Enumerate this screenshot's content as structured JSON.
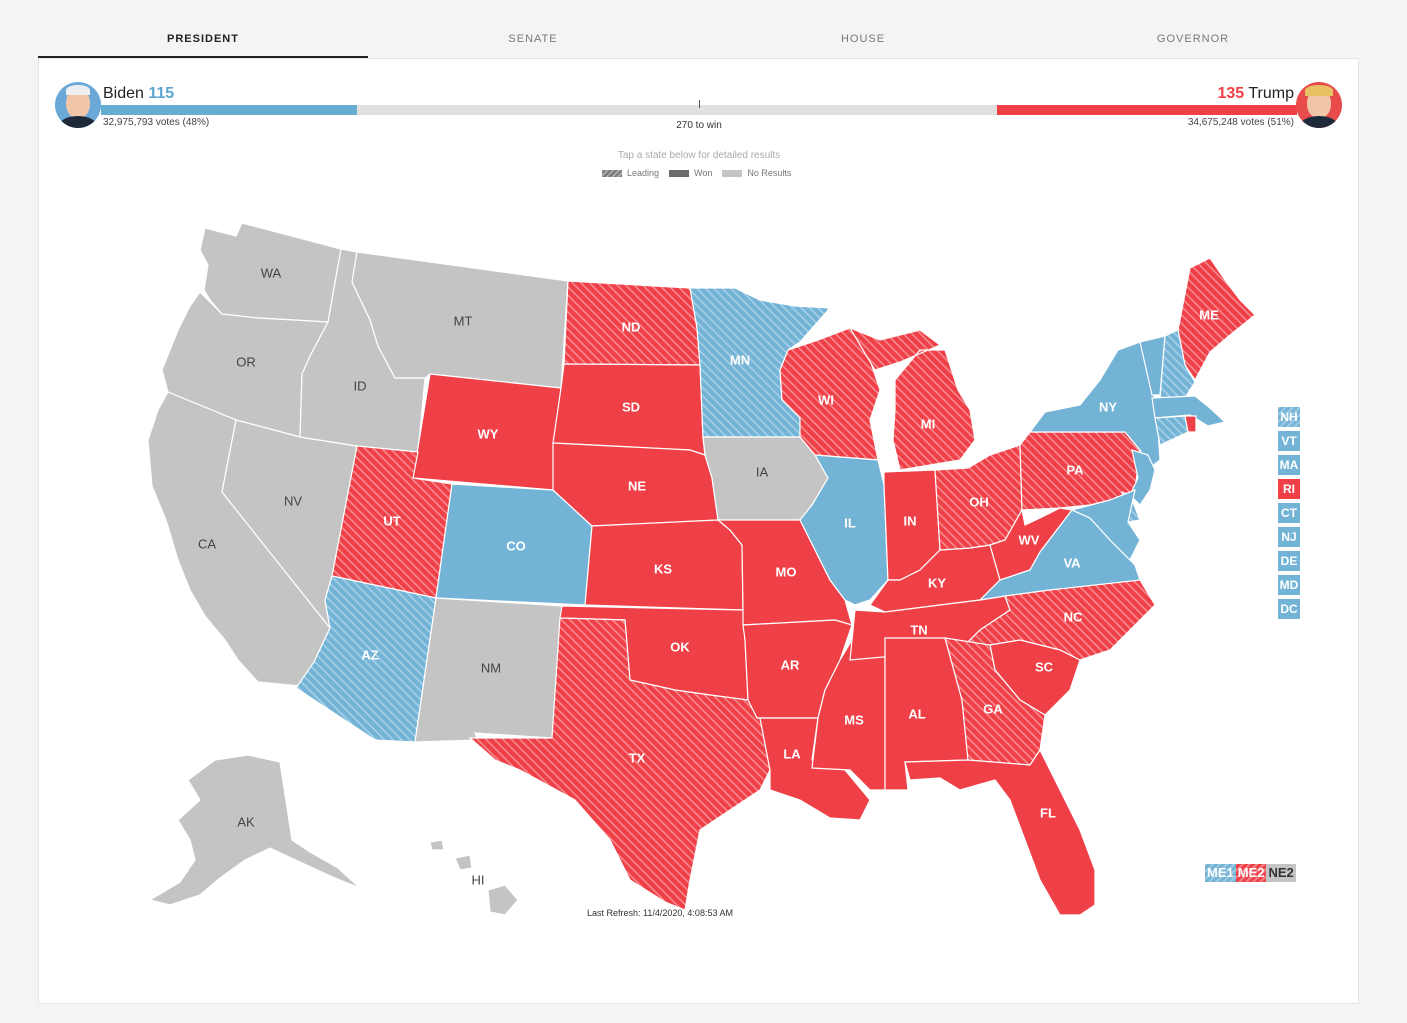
{
  "tabs": [
    {
      "label": "PRESIDENT",
      "active": true
    },
    {
      "label": "SENATE",
      "active": false
    },
    {
      "label": "HOUSE",
      "active": false
    },
    {
      "label": "GOVERNOR",
      "active": false
    }
  ],
  "race": {
    "left": {
      "name": "Biden",
      "electoral_votes": "115",
      "votes": "32,975,793 votes (48%)",
      "color": "#66add1"
    },
    "right": {
      "name": "Trump",
      "electoral_votes": "135",
      "votes": "34,675,248 votes (51%)",
      "color": "#ef4048"
    },
    "threshold_label": "270 to win",
    "total_electoral_votes": 538
  },
  "map": {
    "instruction": "Tap a state below for detailed results",
    "legend": {
      "leading": "Leading",
      "won": "Won",
      "none": "No Results"
    },
    "colors": {
      "dem": "#73b3d6",
      "rep": "#ef4048",
      "none": "#c4c4c4"
    },
    "states": {
      "WA": {
        "label": "WA",
        "status": "none"
      },
      "OR": {
        "label": "OR",
        "status": "none"
      },
      "CA": {
        "label": "CA",
        "status": "none"
      },
      "NV": {
        "label": "NV",
        "status": "none"
      },
      "ID": {
        "label": "ID",
        "status": "none"
      },
      "MT": {
        "label": "MT",
        "status": "none"
      },
      "WY": {
        "label": "WY",
        "status": "rep-won"
      },
      "UT": {
        "label": "UT",
        "status": "rep-leading"
      },
      "AZ": {
        "label": "AZ",
        "status": "dem-leading"
      },
      "CO": {
        "label": "CO",
        "status": "dem-won"
      },
      "NM": {
        "label": "NM",
        "status": "none"
      },
      "ND": {
        "label": "ND",
        "status": "rep-leading"
      },
      "SD": {
        "label": "SD",
        "status": "rep-won"
      },
      "NE": {
        "label": "NE",
        "status": "rep-won"
      },
      "KS": {
        "label": "KS",
        "status": "rep-won"
      },
      "OK": {
        "label": "OK",
        "status": "rep-won"
      },
      "TX": {
        "label": "TX",
        "status": "rep-leading"
      },
      "MN": {
        "label": "MN",
        "status": "dem-leading"
      },
      "IA": {
        "label": "IA",
        "status": "none"
      },
      "MO": {
        "label": "MO",
        "status": "rep-won"
      },
      "AR": {
        "label": "AR",
        "status": "rep-won"
      },
      "LA": {
        "label": "LA",
        "status": "rep-won"
      },
      "WI": {
        "label": "WI",
        "status": "rep-leading"
      },
      "IL": {
        "label": "IL",
        "status": "dem-won"
      },
      "MS": {
        "label": "MS",
        "status": "rep-won"
      },
      "MI": {
        "label": "MI",
        "status": "rep-leading"
      },
      "IN": {
        "label": "IN",
        "status": "rep-won"
      },
      "KY": {
        "label": "KY",
        "status": "rep-won"
      },
      "TN": {
        "label": "TN",
        "status": "rep-won"
      },
      "AL": {
        "label": "AL",
        "status": "rep-won"
      },
      "OH": {
        "label": "OH",
        "status": "rep-leading"
      },
      "WV": {
        "label": "WV",
        "status": "rep-won"
      },
      "VA": {
        "label": "VA",
        "status": "dem-won"
      },
      "NC": {
        "label": "NC",
        "status": "rep-leading"
      },
      "SC": {
        "label": "SC",
        "status": "rep-won"
      },
      "GA": {
        "label": "GA",
        "status": "rep-leading"
      },
      "FL": {
        "label": "FL",
        "status": "rep-won"
      },
      "PA": {
        "label": "PA",
        "status": "rep-leading"
      },
      "NY": {
        "label": "NY",
        "status": "dem-won"
      },
      "ME": {
        "label": "ME",
        "status": "rep-leading"
      },
      "AK": {
        "label": "AK",
        "status": "none"
      },
      "HI": {
        "label": "HI",
        "status": "none"
      }
    },
    "small_states": [
      {
        "label": "NH",
        "status": "dem-leading"
      },
      {
        "label": "VT",
        "status": "dem-won"
      },
      {
        "label": "MA",
        "status": "dem-won"
      },
      {
        "label": "RI",
        "status": "rep-won"
      },
      {
        "label": "CT",
        "status": "dem-won"
      },
      {
        "label": "NJ",
        "status": "dem-won"
      },
      {
        "label": "DE",
        "status": "dem-won"
      },
      {
        "label": "MD",
        "status": "dem-won"
      },
      {
        "label": "DC",
        "status": "dem-won"
      }
    ],
    "districts": [
      {
        "label": "ME1",
        "status": "dem-leading"
      },
      {
        "label": "ME2",
        "status": "rep-leading"
      },
      {
        "label": "NE2",
        "status": "none"
      }
    ]
  },
  "footer": {
    "last_refresh": "Last Refresh: 11/4/2020, 4:08:53 AM"
  }
}
